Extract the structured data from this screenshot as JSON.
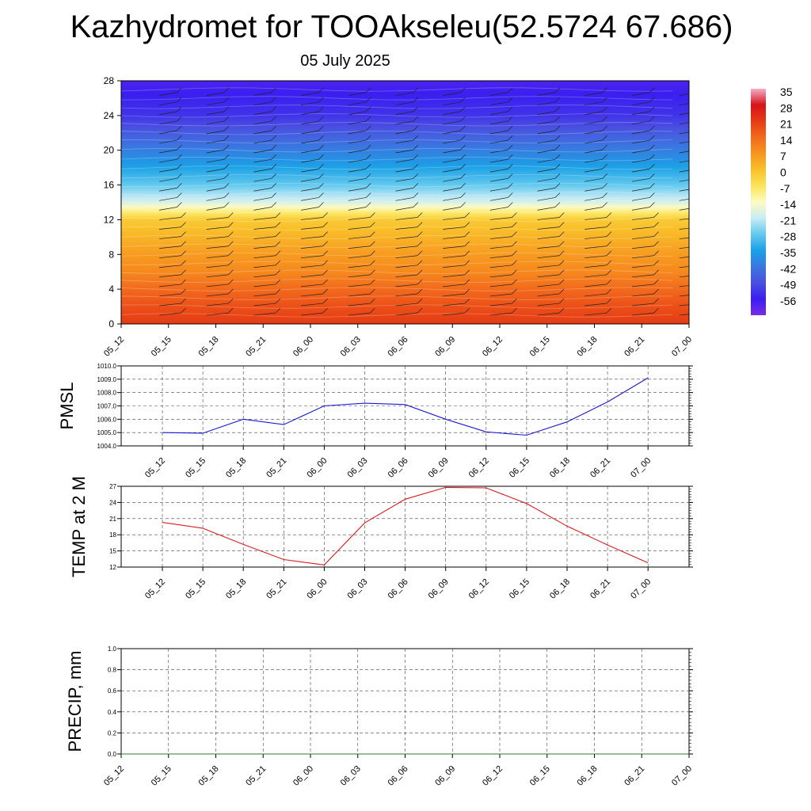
{
  "title": "Kazhydromet for TOOAkseleu(52.5724 67.686)",
  "subtitle": "05 July 2025",
  "colors": {
    "pmsl_line": "#1a1ad6",
    "temp_line": "#e0191e",
    "precip_line": "#2d7d2d",
    "grid": "#444444"
  },
  "chart_data": [
    {
      "type": "heatmap",
      "name_key": "vertical_profile",
      "x_ticks": [
        "05_12",
        "05_15",
        "05_18",
        "05_21",
        "06_00",
        "06_03",
        "06_06",
        "06_09",
        "06_12",
        "06_15",
        "06_18",
        "06_21",
        "07_00"
      ],
      "y_ticks": [
        0,
        4,
        8,
        12,
        16,
        20,
        24,
        28
      ],
      "ylim": [
        0,
        28
      ],
      "colorbar": {
        "labels": [
          "35",
          "28",
          "21",
          "14",
          "7",
          "0",
          "-7",
          "-14",
          "-21",
          "-28",
          "-35",
          "-42",
          "-49",
          "-56"
        ],
        "colors": [
          "#f2aec8",
          "#d6131a",
          "#e63b15",
          "#f26a1c",
          "#f7951f",
          "#f9c02a",
          "#fbe45a",
          "#fefbc2",
          "#c8ecf5",
          "#63c9ee",
          "#1aa0e6",
          "#3a78e0",
          "#4a4fe0",
          "#3a1ff0",
          "#7a2ce6"
        ]
      },
      "profile_levels": [
        0,
        2,
        4,
        6,
        8,
        10,
        12,
        13,
        14,
        16,
        20,
        24,
        28
      ],
      "profile_values": [
        24,
        21,
        17,
        12,
        9,
        5,
        1,
        -7,
        -16,
        -25,
        -38,
        -50,
        -55
      ],
      "grid": false,
      "wind_barbs": true
    },
    {
      "type": "line",
      "ylabel": "PMSL",
      "x": [
        "05_12",
        "05_15",
        "05_18",
        "05_21",
        "06_00",
        "06_03",
        "06_06",
        "06_09",
        "06_12",
        "06_15",
        "06_18",
        "06_21",
        "07_00"
      ],
      "y_ticks": [
        "1004.0",
        "1005.0",
        "1006.0",
        "1007.0",
        "1008.0",
        "1009.0",
        "1010.0"
      ],
      "ylim": [
        1004,
        1010
      ],
      "values": [
        1005.0,
        1004.95,
        1006.0,
        1005.6,
        1007.0,
        1007.2,
        1007.1,
        1006.0,
        1005.05,
        1004.8,
        1005.8,
        1007.3,
        1009.1
      ],
      "grid": true
    },
    {
      "type": "line",
      "ylabel": "TEMP at 2 M",
      "x": [
        "05_12",
        "05_15",
        "05_18",
        "05_21",
        "06_00",
        "06_03",
        "06_06",
        "06_09",
        "06_12",
        "06_15",
        "06_18",
        "06_21",
        "07_00"
      ],
      "y_ticks": [
        "12",
        "15",
        "18",
        "21",
        "24",
        "27"
      ],
      "ylim": [
        12,
        27
      ],
      "values": [
        20.3,
        19.2,
        16.2,
        13.4,
        12.4,
        20.2,
        24.6,
        26.8,
        26.7,
        23.8,
        19.6,
        16.1,
        12.8
      ],
      "grid": true
    },
    {
      "type": "line",
      "ylabel": "PRECIP, mm",
      "x": [
        "05_12",
        "05_15",
        "05_18",
        "05_21",
        "06_00",
        "06_03",
        "06_06",
        "06_09",
        "06_12",
        "06_15",
        "06_18",
        "06_21",
        "07_00"
      ],
      "y_ticks": [
        "0.0",
        "0.2",
        "0.4",
        "0.6",
        "0.8",
        "1.0"
      ],
      "ylim": [
        0,
        1
      ],
      "values": [
        0,
        0,
        0,
        0,
        0,
        0,
        0,
        0,
        0,
        0,
        0,
        0,
        0
      ],
      "grid": true
    }
  ]
}
